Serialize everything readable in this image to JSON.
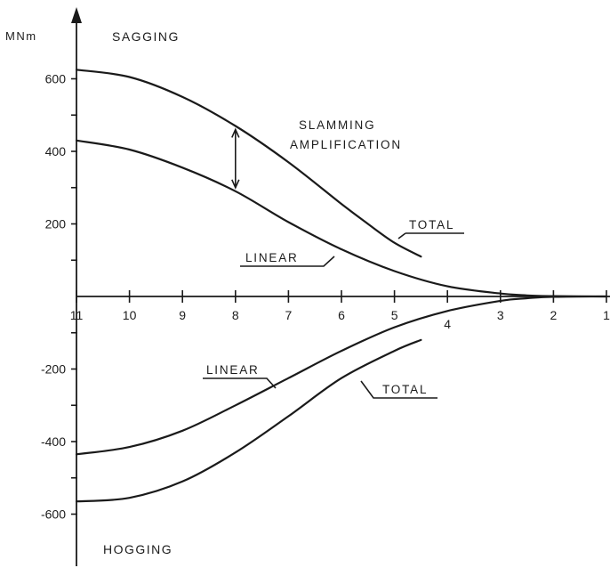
{
  "chart_data": {
    "type": "line",
    "y_unit": "MNm",
    "x_ticks": [
      "11",
      "10",
      "9",
      "8",
      "7",
      "6",
      "5",
      "4",
      "3",
      "2",
      "1"
    ],
    "y_ticks": [
      600,
      400,
      200,
      -200,
      -400,
      -600
    ],
    "xlim": [
      11,
      1
    ],
    "ylim": [
      -700,
      720
    ],
    "region_labels": {
      "top": "SAGGING",
      "bottom": "HOGGING"
    },
    "annotation": {
      "line1": "SLAMMING",
      "line2": "AMPLIFICATION"
    },
    "series": [
      {
        "name": "TOTAL",
        "group": "sagging",
        "x": [
          11,
          10,
          9,
          8,
          7,
          6,
          5.5,
          5,
          4.5
        ],
        "y": [
          625,
          605,
          550,
          470,
          370,
          255,
          200,
          148,
          110
        ]
      },
      {
        "name": "LINEAR",
        "group": "sagging",
        "x": [
          11,
          10,
          9,
          8,
          7,
          6,
          5,
          4,
          3,
          2.5,
          2,
          1
        ],
        "y": [
          430,
          405,
          355,
          290,
          205,
          130,
          70,
          28,
          8,
          3,
          1,
          0
        ]
      },
      {
        "name": "LINEAR",
        "group": "hogging",
        "x": [
          11,
          10,
          9,
          8,
          7,
          6,
          5,
          4,
          3,
          2.5,
          2,
          1
        ],
        "y": [
          -435,
          -415,
          -370,
          -300,
          -225,
          -150,
          -85,
          -40,
          -12,
          -5,
          -1,
          0
        ]
      },
      {
        "name": "TOTAL",
        "group": "hogging",
        "x": [
          11,
          10,
          9,
          8,
          7,
          6,
          5,
          4.5
        ],
        "y": [
          -565,
          -555,
          -510,
          -430,
          -330,
          -225,
          -150,
          -120
        ]
      }
    ],
    "grid": false
  }
}
